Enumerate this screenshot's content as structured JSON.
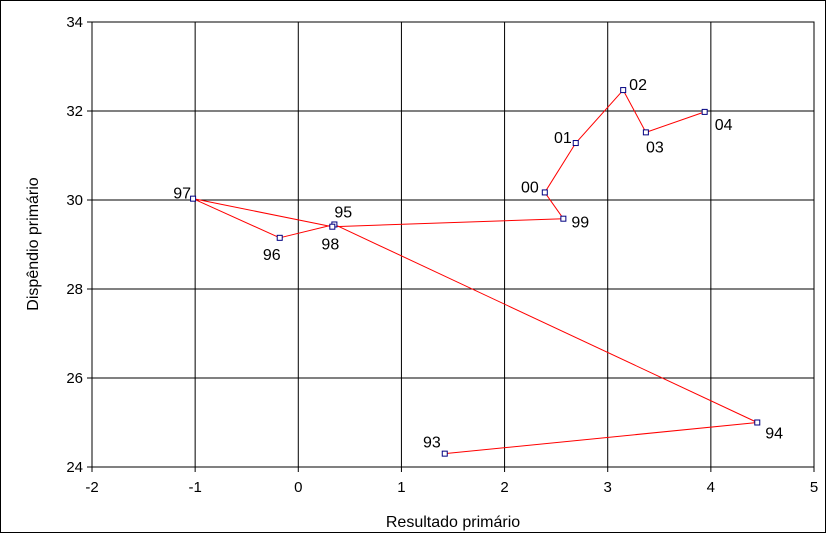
{
  "chart_data": {
    "type": "line",
    "title": "",
    "xlabel": "Resultado primário",
    "ylabel": "Dispêndio primário",
    "xlim": [
      -2,
      5
    ],
    "ylim": [
      24,
      34
    ],
    "x_ticks": [
      "-2",
      "-1",
      "0",
      "1",
      "2",
      "3",
      "4",
      "5"
    ],
    "y_ticks": [
      "24",
      "26",
      "28",
      "30",
      "32",
      "34"
    ],
    "grid": true,
    "legend": "none",
    "series": [
      {
        "line_color": "#ff0000",
        "marker_color": "#000080",
        "points": [
          {
            "label": "93",
            "x": 1.42,
            "y": 24.3
          },
          {
            "label": "94",
            "x": 4.45,
            "y": 25.0
          },
          {
            "label": "95",
            "x": 0.35,
            "y": 29.45
          },
          {
            "label": "96",
            "x": -0.18,
            "y": 29.15
          },
          {
            "label": "97",
            "x": -1.02,
            "y": 30.03
          },
          {
            "label": "98",
            "x": 0.33,
            "y": 29.4
          },
          {
            "label": "99",
            "x": 2.57,
            "y": 29.58
          },
          {
            "label": "00",
            "x": 2.39,
            "y": 30.17
          },
          {
            "label": "01",
            "x": 2.69,
            "y": 31.28
          },
          {
            "label": "02",
            "x": 3.15,
            "y": 32.47
          },
          {
            "label": "03",
            "x": 3.37,
            "y": 31.52
          },
          {
            "label": "04",
            "x": 3.94,
            "y": 31.98
          }
        ]
      }
    ]
  }
}
